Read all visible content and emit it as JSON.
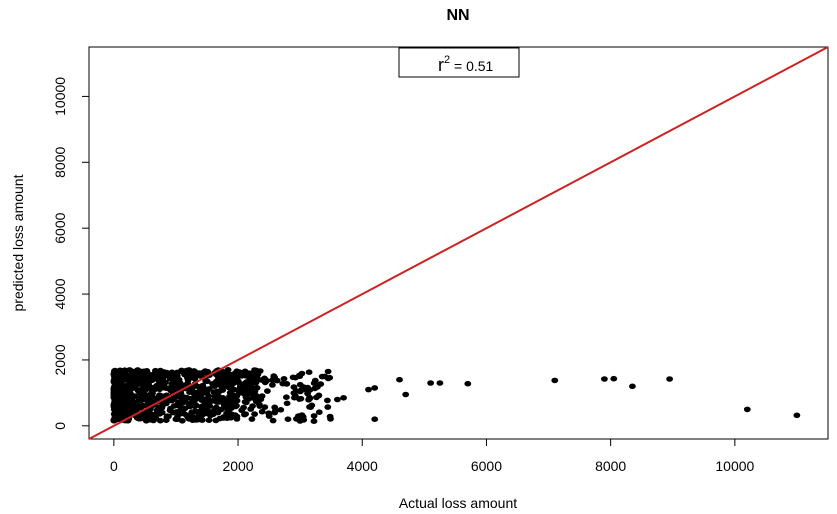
{
  "chart_data": {
    "type": "scatter",
    "title": "NN",
    "xlabel": "Actual loss amount",
    "ylabel": "predicted loss amount",
    "xlim": [
      -400,
      11500
    ],
    "ylim": [
      -400,
      11500
    ],
    "xticks": [
      0,
      2000,
      4000,
      6000,
      8000,
      10000
    ],
    "yticks": [
      0,
      2000,
      4000,
      6000,
      8000,
      10000
    ],
    "grid": false,
    "legend": {
      "placement": "top-center",
      "r_symbol": "r",
      "r_superscript": "2",
      "r_value_text": " = 0.51"
    },
    "reference_line": {
      "type": "identity",
      "color": "#cc2222"
    },
    "point_color": "#000000",
    "cluster": {
      "x_min": 0,
      "x_max": 3500,
      "y_min": 0,
      "y_max": 1700
    },
    "outliers": [
      {
        "x": 3600,
        "y": 800
      },
      {
        "x": 3700,
        "y": 850
      },
      {
        "x": 3450,
        "y": 1650
      },
      {
        "x": 4100,
        "y": 1100
      },
      {
        "x": 4200,
        "y": 1150
      },
      {
        "x": 4200,
        "y": 200
      },
      {
        "x": 4600,
        "y": 1400
      },
      {
        "x": 4700,
        "y": 950
      },
      {
        "x": 5100,
        "y": 1300
      },
      {
        "x": 5250,
        "y": 1300
      },
      {
        "x": 5700,
        "y": 1280
      },
      {
        "x": 7100,
        "y": 1380
      },
      {
        "x": 7900,
        "y": 1420
      },
      {
        "x": 8050,
        "y": 1430
      },
      {
        "x": 8350,
        "y": 1200
      },
      {
        "x": 8950,
        "y": 1420
      },
      {
        "x": 10200,
        "y": 500
      },
      {
        "x": 11000,
        "y": 320
      }
    ]
  }
}
